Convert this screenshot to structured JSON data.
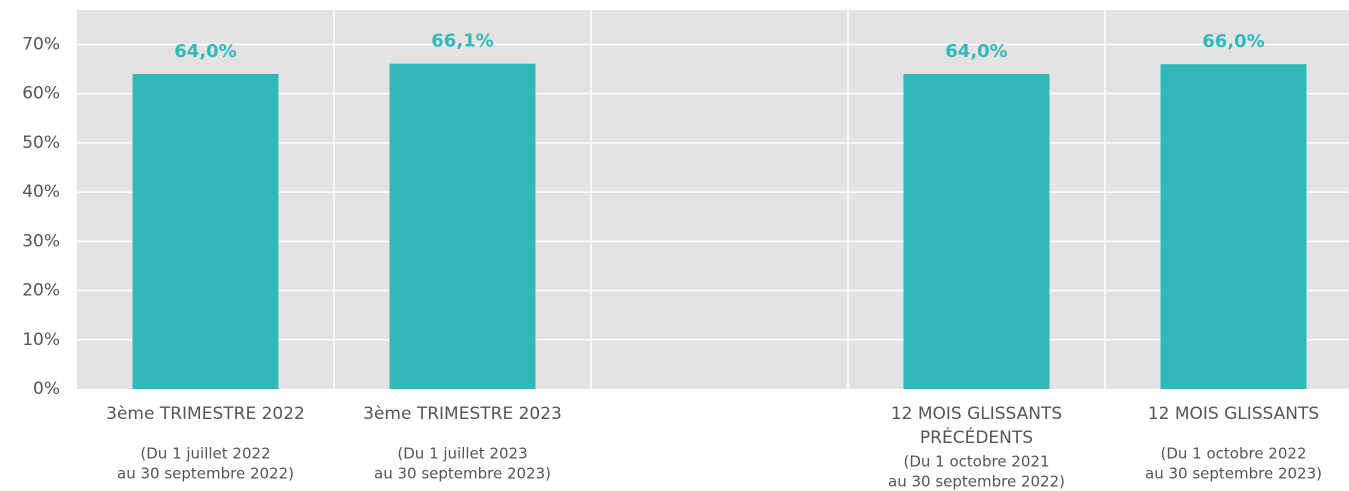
{
  "chart_data": {
    "type": "bar",
    "categories": [
      [
        "3ème TRIMESTRE 2022"
      ],
      [
        "3ème TRIMESTRE 2023"
      ],
      null,
      [
        "12 MOIS GLISSANTS",
        "PRÉCÉDENTS"
      ],
      [
        "12 MOIS GLISSANTS"
      ]
    ],
    "category_notes": [
      [
        "(Du 1 juillet 2022",
        "au 30 septembre 2022)"
      ],
      [
        "(Du 1 juillet 2023",
        "au 30 septembre 2023)"
      ],
      null,
      [
        "(Du 1 octobre 2021",
        "au 30 septembre 2022)"
      ],
      [
        "(Du 1 octobre 2022",
        "au 30 septembre 2023)"
      ]
    ],
    "values": [
      64.0,
      66.1,
      null,
      64.0,
      66.0
    ],
    "value_labels": [
      "64,0%",
      "66,1%",
      null,
      "64,0%",
      "66,0%"
    ],
    "color": "#33b8b9",
    "ylim": [
      0,
      77
    ],
    "yticks": [
      {
        "value": 0,
        "label": "0%"
      },
      {
        "value": 10,
        "label": "10%"
      },
      {
        "value": 20,
        "label": "20%"
      },
      {
        "value": 30,
        "label": "30%"
      },
      {
        "value": 40,
        "label": "40%"
      },
      {
        "value": 50,
        "label": "50%"
      },
      {
        "value": 60,
        "label": "60%"
      },
      {
        "value": 70,
        "label": "70%"
      }
    ],
    "grid": true
  }
}
